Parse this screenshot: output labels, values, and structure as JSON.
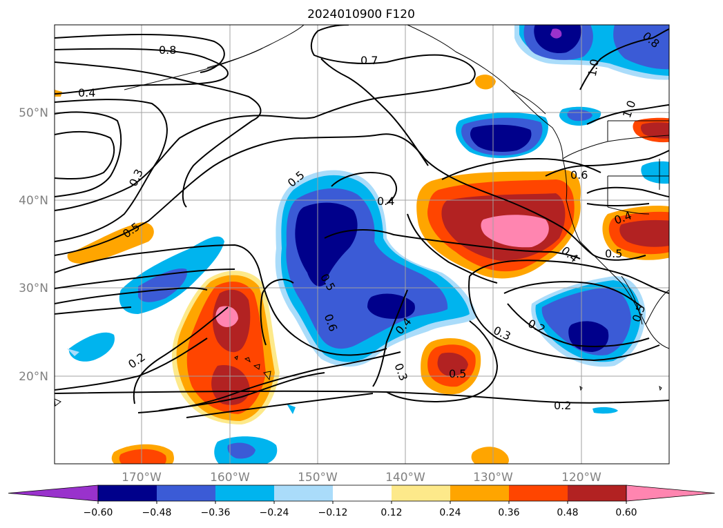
{
  "title": "2024010900 F120",
  "map": {
    "lat_labels": [
      "50°N",
      "40°N",
      "30°N",
      "20°N"
    ],
    "lon_labels": [
      "170°W",
      "160°W",
      "150°W",
      "140°W",
      "130°W",
      "120°W"
    ],
    "contour_labels": [
      "0.8",
      "0.4",
      "0.7",
      "0.3",
      "0.5",
      "0.5",
      "0.4",
      "0.6",
      "0.4",
      "0.5",
      "0.5",
      "0.6",
      "0.4",
      "0.3",
      "0.2",
      "0.3",
      "0.2",
      "0.5",
      "0.2",
      "0.8",
      "1.0",
      "1.0",
      "0.4",
      "0.5"
    ]
  },
  "colorbar": {
    "ticks": [
      "−0.60",
      "−0.48",
      "−0.36",
      "−0.24",
      "−0.12",
      "0.12",
      "0.24",
      "0.36",
      "0.48",
      "0.60"
    ],
    "colors": {
      "neg_060_plus": "#9932cc",
      "neg_048": "#00008b",
      "neg_036": "#3b5bd6",
      "neg_024": "#00b4ee",
      "neg_012": "#aadcfa",
      "zero": "#ffffff",
      "pos_012": "#fde98a",
      "pos_024": "#ffa500",
      "pos_036": "#ff4500",
      "pos_048": "#b22222",
      "pos_060_plus": "#ff85b0"
    }
  }
}
